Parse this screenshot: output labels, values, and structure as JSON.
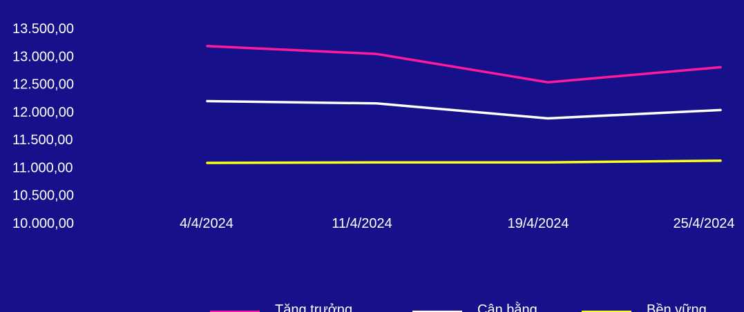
{
  "chart_data": {
    "type": "line",
    "title": "",
    "xlabel": "",
    "ylabel": "",
    "x": [
      "4/4/2024",
      "11/4/2024",
      "19/4/2024",
      "25/4/2024"
    ],
    "y_ticks": [
      "10.000,00",
      "10.500,00",
      "11.000,00",
      "11.500,00",
      "12.000,00",
      "12.500,00",
      "13.000,00",
      "13.500,00"
    ],
    "ylim": [
      10000,
      13500
    ],
    "grid": false,
    "legend_position": "bottom",
    "series": [
      {
        "name": "Tăng trưởng",
        "color": "#ff1a9b",
        "values": [
          13180,
          13040,
          12530,
          12800
        ]
      },
      {
        "name": "Cân bằng",
        "color": "#ffffff",
        "values": [
          12190,
          12150,
          11880,
          12030
        ]
      },
      {
        "name": "Bền vững",
        "color": "#ffff1a",
        "values": [
          11080,
          11090,
          11090,
          11120
        ]
      }
    ]
  },
  "colors": {
    "background": "#16118a",
    "text": "#ffffff"
  }
}
